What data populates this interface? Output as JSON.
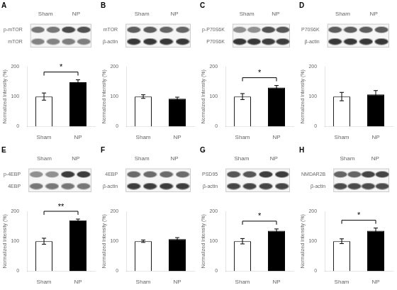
{
  "chart_data": [
    {
      "type": "bar",
      "title": "A",
      "categories": [
        "Sham",
        "NP"
      ],
      "values": [
        100,
        148
      ],
      "errors": [
        12,
        8
      ],
      "colors": [
        "white",
        "black"
      ],
      "ylabel": "Normalized Intensity (%)",
      "ylim": [
        0,
        200
      ],
      "yticks": [
        0,
        100,
        200
      ],
      "grid": false,
      "annotation": "*",
      "blot": {
        "rows": [
          "p-mTOR",
          "mTOR"
        ],
        "columns": [
          "Sham",
          "NP"
        ],
        "cells": [
          [
            0.45,
            0.45,
            0.28,
            0.3
          ],
          [
            0.5,
            0.5,
            0.48,
            0.48
          ]
        ]
      }
    },
    {
      "type": "bar",
      "title": "B",
      "categories": [
        "Sham",
        "NP"
      ],
      "values": [
        100,
        93
      ],
      "errors": [
        6,
        5
      ],
      "colors": [
        "white",
        "black"
      ],
      "ylabel": "Normalized Intensity (%)",
      "ylim": [
        0,
        200
      ],
      "yticks": [
        0,
        100,
        200
      ],
      "grid": false,
      "blot": {
        "rows": [
          "mTOR",
          "β-actin"
        ],
        "columns": [
          "Sham",
          "NP"
        ],
        "cells": [
          [
            0.35,
            0.35,
            0.38,
            0.38
          ],
          [
            0.2,
            0.2,
            0.2,
            0.2
          ]
        ]
      }
    },
    {
      "type": "bar",
      "title": "C",
      "categories": [
        "Sham",
        "NP"
      ],
      "values": [
        100,
        130
      ],
      "errors": [
        10,
        7
      ],
      "colors": [
        "white",
        "black"
      ],
      "ylabel": "Normalized Intensity (%)",
      "ylim": [
        0,
        200
      ],
      "yticks": [
        0,
        100,
        200
      ],
      "grid": false,
      "annotation": "*",
      "blot": {
        "rows": [
          "p-P70S6K",
          "P70S6K"
        ],
        "columns": [
          "Sham",
          "NP"
        ],
        "cells": [
          [
            0.55,
            0.55,
            0.3,
            0.32
          ],
          [
            0.2,
            0.2,
            0.22,
            0.22
          ]
        ]
      }
    },
    {
      "type": "bar",
      "title": "D",
      "categories": [
        "Sham",
        "NP"
      ],
      "values": [
        100,
        107
      ],
      "errors": [
        14,
        13
      ],
      "colors": [
        "white",
        "black"
      ],
      "ylabel": "Normalized Intensity (%)",
      "ylim": [
        0,
        200
      ],
      "yticks": [
        0,
        100,
        200
      ],
      "grid": false,
      "blot": {
        "rows": [
          "P70S6K",
          "β-actin"
        ],
        "columns": [
          "Sham",
          "NP"
        ],
        "cells": [
          [
            0.35,
            0.35,
            0.35,
            0.35
          ],
          [
            0.2,
            0.2,
            0.2,
            0.2
          ]
        ]
      }
    },
    {
      "type": "bar",
      "title": "E",
      "categories": [
        "Sham",
        "NP"
      ],
      "values": [
        100,
        170
      ],
      "errors": [
        10,
        4
      ],
      "colors": [
        "white",
        "black"
      ],
      "ylabel": "Normalized Intensity (%)",
      "ylim": [
        0,
        200
      ],
      "yticks": [
        0,
        100,
        200
      ],
      "grid": false,
      "annotation": "**",
      "blot": {
        "rows": [
          "p-4EBP",
          "4EBP"
        ],
        "columns": [
          "Sham",
          "NP"
        ],
        "cells": [
          [
            0.55,
            0.55,
            0.22,
            0.22
          ],
          [
            0.45,
            0.45,
            0.45,
            0.45
          ]
        ]
      }
    },
    {
      "type": "bar",
      "title": "F",
      "categories": [
        "Sham",
        "NP"
      ],
      "values": [
        100,
        107
      ],
      "errors": [
        4,
        5
      ],
      "colors": [
        "white",
        "black"
      ],
      "ylabel": "Normalized Intensity (%)",
      "ylim": [
        0,
        200
      ],
      "yticks": [
        0,
        100,
        200
      ],
      "grid": false,
      "blot": {
        "rows": [
          "4EBP",
          "β-actin"
        ],
        "columns": [
          "Sham",
          "NP"
        ],
        "cells": [
          [
            0.4,
            0.4,
            0.4,
            0.4
          ],
          [
            0.22,
            0.22,
            0.22,
            0.22
          ]
        ]
      }
    },
    {
      "type": "bar",
      "title": "G",
      "categories": [
        "Sham",
        "NP"
      ],
      "values": [
        100,
        135
      ],
      "errors": [
        9,
        6
      ],
      "colors": [
        "white",
        "black"
      ],
      "ylabel": "Normalized Intensity (%)",
      "ylim": [
        0,
        200
      ],
      "yticks": [
        0,
        100,
        200
      ],
      "grid": false,
      "annotation": "*",
      "blot": {
        "rows": [
          "PSD95",
          "β-actin"
        ],
        "columns": [
          "Sham",
          "NP"
        ],
        "cells": [
          [
            0.32,
            0.32,
            0.22,
            0.22
          ],
          [
            0.25,
            0.25,
            0.25,
            0.25
          ]
        ]
      }
    },
    {
      "type": "bar",
      "title": "H",
      "categories": [
        "Sham",
        "NP"
      ],
      "values": [
        100,
        135
      ],
      "errors": [
        8,
        9
      ],
      "colors": [
        "white",
        "black"
      ],
      "ylabel": "Normalized Intensity (%)",
      "ylim": [
        0,
        200
      ],
      "yticks": [
        0,
        100,
        200
      ],
      "grid": false,
      "annotation": "*",
      "blot": {
        "rows": [
          "NMDAR2B",
          "β-actin"
        ],
        "columns": [
          "Sham",
          "NP"
        ],
        "cells": [
          [
            0.38,
            0.38,
            0.25,
            0.25
          ],
          [
            0.28,
            0.28,
            0.28,
            0.28
          ]
        ]
      }
    }
  ]
}
